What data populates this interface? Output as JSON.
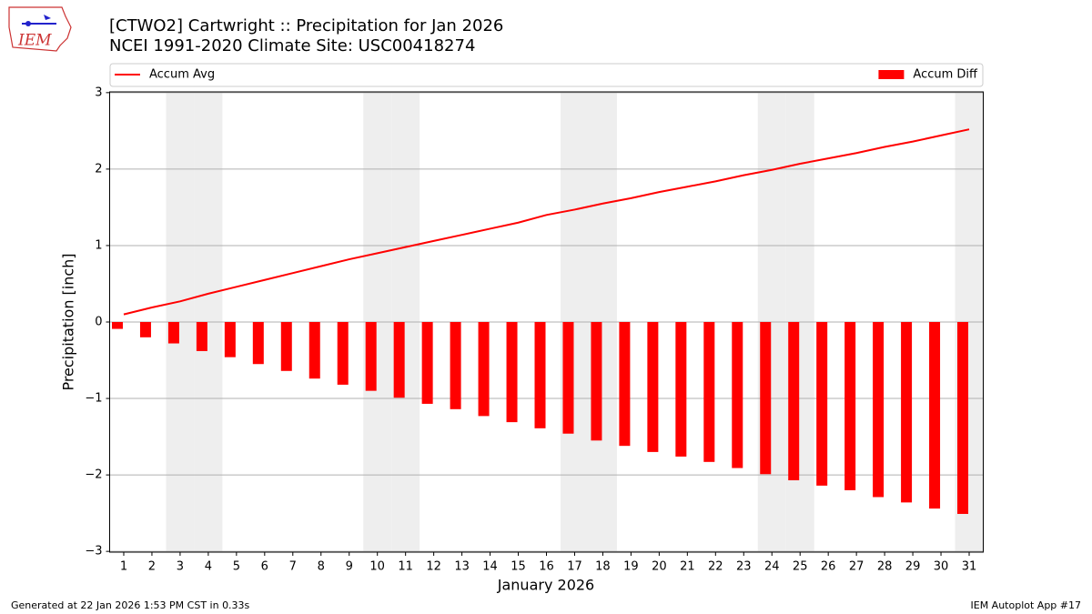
{
  "logo_text": "IEM",
  "footer_left": "Generated at 22 Jan 2026 1:53 PM CST in 0.33s",
  "footer_right": "IEM Autoplot App #17",
  "chart_data": {
    "type": "combo",
    "title": "[CTWO2] Cartwright :: Precipitation for Jan 2026",
    "subtitle": "NCEI 1991-2020 Climate Site: USC00418274",
    "x_label": "January 2026",
    "y_label": "Precipitation [inch]",
    "x": [
      1,
      2,
      3,
      4,
      5,
      6,
      7,
      8,
      9,
      10,
      11,
      12,
      13,
      14,
      15,
      16,
      17,
      18,
      19,
      20,
      21,
      22,
      23,
      24,
      25,
      26,
      27,
      28,
      29,
      30,
      31
    ],
    "xlim": [
      0.5,
      31.5
    ],
    "xticks": [
      1,
      2,
      3,
      4,
      5,
      6,
      7,
      8,
      9,
      10,
      11,
      12,
      13,
      14,
      15,
      16,
      17,
      18,
      19,
      20,
      21,
      22,
      23,
      24,
      25,
      26,
      27,
      28,
      29,
      30,
      31
    ],
    "ylim": [
      -3.01,
      3.01
    ],
    "yticks": [
      {
        "value": -3,
        "label": "−3"
      },
      {
        "value": -2,
        "label": "−2"
      },
      {
        "value": -1,
        "label": "−1"
      },
      0,
      1,
      2,
      3
    ],
    "grid": true,
    "shaded_x": [
      3,
      4,
      10,
      11,
      17,
      18,
      24,
      25,
      31
    ],
    "shade_color": "#eeeeee",
    "series": [
      {
        "name": "Accum Avg",
        "type": "line",
        "color": "#ff0000",
        "legend": "upper-left",
        "values": [
          0.1,
          0.19,
          0.27,
          0.37,
          0.46,
          0.55,
          0.64,
          0.73,
          0.82,
          0.9,
          0.98,
          1.06,
          1.14,
          1.22,
          1.3,
          1.4,
          1.47,
          1.55,
          1.62,
          1.7,
          1.77,
          1.84,
          1.92,
          1.99,
          2.07,
          2.14,
          2.21,
          2.29,
          2.36,
          2.44,
          2.52
        ]
      },
      {
        "name": "Accum Diff",
        "type": "bar",
        "color": "#ff0000",
        "legend": "upper-right",
        "values": [
          -0.09,
          -0.2,
          -0.28,
          -0.38,
          -0.46,
          -0.55,
          -0.64,
          -0.74,
          -0.82,
          -0.9,
          -0.99,
          -1.07,
          -1.14,
          -1.23,
          -1.31,
          -1.39,
          -1.46,
          -1.55,
          -1.62,
          -1.7,
          -1.76,
          -1.83,
          -1.91,
          -1.99,
          -2.07,
          -2.14,
          -2.2,
          -2.29,
          -2.36,
          -2.44,
          -2.51
        ]
      }
    ]
  }
}
